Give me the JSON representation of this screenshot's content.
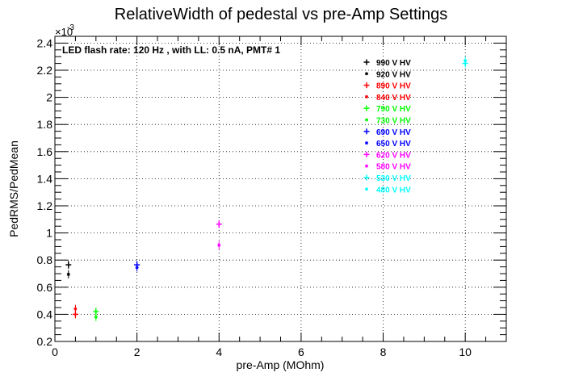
{
  "chart_data": {
    "type": "scatter",
    "title": "RelativeWidth of pedestal vs pre-Amp Settings",
    "xlabel": "pre-Amp (MOhm)",
    "ylabel": "PedRMS/PedMean",
    "y_multiplier": "×10",
    "y_exponent": "-3",
    "annotation": "LED flash rate: 120 Hz , with LL: 0.5 nA, PMT# 1",
    "xlim": [
      0,
      11
    ],
    "ylim": [
      0.2,
      2.45
    ],
    "x_ticks": [
      0,
      2,
      4,
      6,
      8,
      10
    ],
    "y_ticks": [
      0.2,
      0.4,
      0.6,
      0.8,
      1,
      1.2,
      1.4,
      1.6,
      1.8,
      2,
      2.2,
      2.4
    ],
    "grid": true,
    "legend_position": "top-right",
    "series": [
      {
        "name": "990 V HV",
        "color": "#000000",
        "marker": "plus",
        "points": [
          [
            0.33,
            0.765
          ]
        ]
      },
      {
        "name": "920 V HV",
        "color": "#000000",
        "marker": "star",
        "points": [
          [
            0.33,
            0.695
          ]
        ]
      },
      {
        "name": "890 V HV",
        "color": "#ff0000",
        "marker": "plus",
        "points": [
          [
            0.5,
            0.4
          ]
        ]
      },
      {
        "name": "840 V HV",
        "color": "#ff0000",
        "marker": "star",
        "points": [
          [
            0.5,
            0.44
          ]
        ]
      },
      {
        "name": "790 V HV",
        "color": "#00ff00",
        "marker": "plus",
        "points": [
          [
            1.0,
            0.42
          ]
        ]
      },
      {
        "name": "730 V HV",
        "color": "#00ff00",
        "marker": "star",
        "points": [
          [
            1.0,
            0.38
          ]
        ]
      },
      {
        "name": "690 V HV",
        "color": "#0000ff",
        "marker": "plus",
        "points": [
          [
            2.0,
            0.765
          ]
        ]
      },
      {
        "name": "650 V HV",
        "color": "#0000ff",
        "marker": "star",
        "points": [
          [
            2.0,
            0.745
          ]
        ]
      },
      {
        "name": "620 V HV",
        "color": "#ff00ff",
        "marker": "plus",
        "points": [
          [
            4.0,
            1.065
          ]
        ]
      },
      {
        "name": "580 V HV",
        "color": "#ff00ff",
        "marker": "star",
        "points": [
          [
            4.0,
            0.91
          ]
        ]
      },
      {
        "name": "530 V HV",
        "color": "#00ffff",
        "marker": "plus",
        "points": [
          [
            10.0,
            2.25
          ]
        ]
      },
      {
        "name": "480 V HV",
        "color": "#00ffff",
        "marker": "star",
        "points": [
          [
            10.0,
            2.27
          ]
        ]
      }
    ]
  }
}
